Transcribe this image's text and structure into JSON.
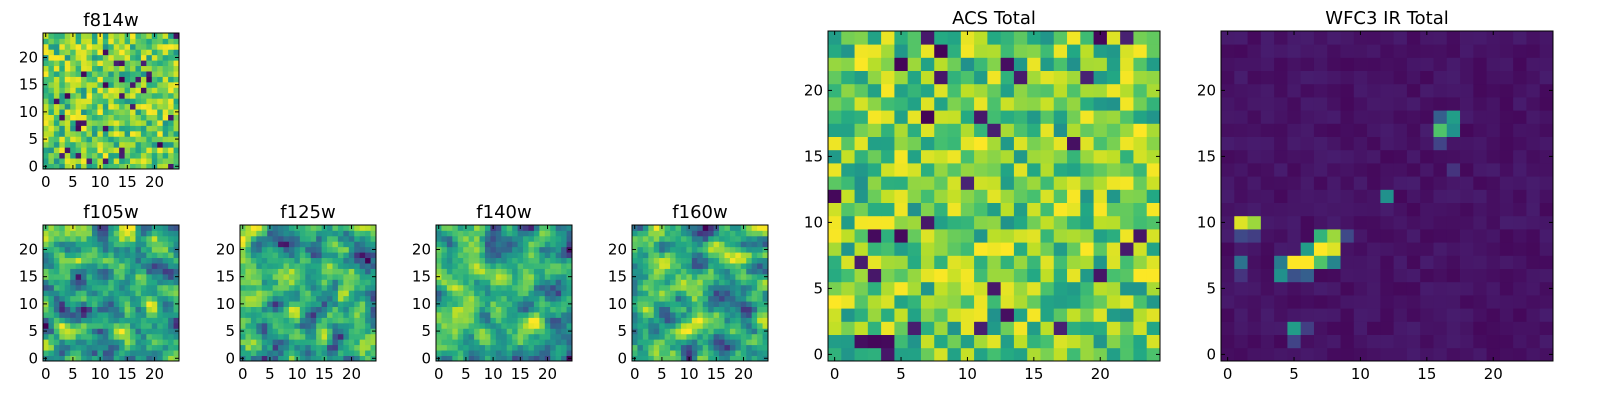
{
  "chart_data": [
    {
      "type": "heatmap",
      "title": "f814w",
      "xlabel": "",
      "ylabel": "",
      "size": 25,
      "xlim": [
        0,
        24
      ],
      "ylim": [
        0,
        24
      ],
      "x_ticks": [
        0,
        5,
        10,
        15,
        20
      ],
      "y_ticks": [
        0,
        5,
        10,
        15,
        20
      ],
      "colormap": "viridis",
      "pattern": "noise",
      "seed": 11
    },
    {
      "type": "heatmap",
      "title": "f105w",
      "xlabel": "",
      "ylabel": "",
      "size": 25,
      "xlim": [
        0,
        24
      ],
      "ylim": [
        0,
        24
      ],
      "x_ticks": [
        0,
        5,
        10,
        15,
        20
      ],
      "y_ticks": [
        0,
        5,
        10,
        15,
        20
      ],
      "colormap": "viridis",
      "pattern": "smooth-noise",
      "seed": 23
    },
    {
      "type": "heatmap",
      "title": "f125w",
      "xlabel": "",
      "ylabel": "",
      "size": 25,
      "xlim": [
        0,
        24
      ],
      "ylim": [
        0,
        24
      ],
      "x_ticks": [
        0,
        5,
        10,
        15,
        20
      ],
      "y_ticks": [
        0,
        5,
        10,
        15,
        20
      ],
      "colormap": "viridis",
      "pattern": "smooth-noise",
      "seed": 37
    },
    {
      "type": "heatmap",
      "title": "f140w",
      "xlabel": "",
      "ylabel": "",
      "size": 25,
      "xlim": [
        0,
        24
      ],
      "ylim": [
        0,
        24
      ],
      "x_ticks": [
        0,
        5,
        10,
        15,
        20
      ],
      "y_ticks": [
        0,
        5,
        10,
        15,
        20
      ],
      "colormap": "viridis",
      "pattern": "smooth-noise",
      "seed": 53
    },
    {
      "type": "heatmap",
      "title": "f160w",
      "xlabel": "",
      "ylabel": "",
      "size": 25,
      "xlim": [
        0,
        24
      ],
      "ylim": [
        0,
        24
      ],
      "x_ticks": [
        0,
        5,
        10,
        15,
        20
      ],
      "y_ticks": [
        0,
        5,
        10,
        15,
        20
      ],
      "colormap": "viridis",
      "pattern": "smooth-noise",
      "seed": 71
    },
    {
      "type": "heatmap",
      "title": "ACS Total",
      "xlabel": "",
      "ylabel": "",
      "size": 25,
      "xlim": [
        0,
        24
      ],
      "ylim": [
        0,
        24
      ],
      "x_ticks": [
        0,
        5,
        10,
        15,
        20
      ],
      "y_ticks": [
        0,
        5,
        10,
        15,
        20
      ],
      "colormap": "viridis",
      "pattern": "noise",
      "seed": 97
    },
    {
      "type": "heatmap",
      "title": "WFC3 IR Total",
      "xlabel": "",
      "ylabel": "",
      "size": 25,
      "xlim": [
        0,
        24
      ],
      "ylim": [
        0,
        24
      ],
      "x_ticks": [
        0,
        5,
        10,
        15,
        20
      ],
      "y_ticks": [
        0,
        5,
        10,
        15,
        20
      ],
      "colormap": "viridis",
      "pattern": "sources",
      "seed": 131,
      "bright_cells": [
        {
          "x": 1,
          "y": 10,
          "v": 0.95
        },
        {
          "x": 2,
          "y": 10,
          "v": 0.85
        },
        {
          "x": 1,
          "y": 9,
          "v": 0.22
        },
        {
          "x": 2,
          "y": 9,
          "v": 0.18
        },
        {
          "x": 1,
          "y": 7,
          "v": 0.38
        },
        {
          "x": 1,
          "y": 6,
          "v": 0.15
        },
        {
          "x": 4,
          "y": 7,
          "v": 0.42
        },
        {
          "x": 4,
          "y": 6,
          "v": 0.5
        },
        {
          "x": 5,
          "y": 6,
          "v": 0.25
        },
        {
          "x": 6,
          "y": 8,
          "v": 0.55
        },
        {
          "x": 7,
          "y": 8,
          "v": 1.0
        },
        {
          "x": 8,
          "y": 8,
          "v": 0.95
        },
        {
          "x": 7,
          "y": 9,
          "v": 0.65
        },
        {
          "x": 8,
          "y": 9,
          "v": 0.85
        },
        {
          "x": 9,
          "y": 9,
          "v": 0.22
        },
        {
          "x": 5,
          "y": 7,
          "v": 1.0
        },
        {
          "x": 6,
          "y": 7,
          "v": 1.0
        },
        {
          "x": 7,
          "y": 7,
          "v": 0.72
        },
        {
          "x": 8,
          "y": 7,
          "v": 0.45
        },
        {
          "x": 6,
          "y": 6,
          "v": 0.3
        },
        {
          "x": 12,
          "y": 12,
          "v": 0.5
        },
        {
          "x": 16,
          "y": 18,
          "v": 0.3
        },
        {
          "x": 17,
          "y": 18,
          "v": 0.55
        },
        {
          "x": 16,
          "y": 17,
          "v": 0.72
        },
        {
          "x": 17,
          "y": 17,
          "v": 0.5
        },
        {
          "x": 16,
          "y": 16,
          "v": 0.2
        },
        {
          "x": 17,
          "y": 14,
          "v": 0.15
        },
        {
          "x": 5,
          "y": 2,
          "v": 0.55
        },
        {
          "x": 5,
          "y": 1,
          "v": 0.2
        },
        {
          "x": 6,
          "y": 2,
          "v": 0.18
        }
      ]
    }
  ]
}
